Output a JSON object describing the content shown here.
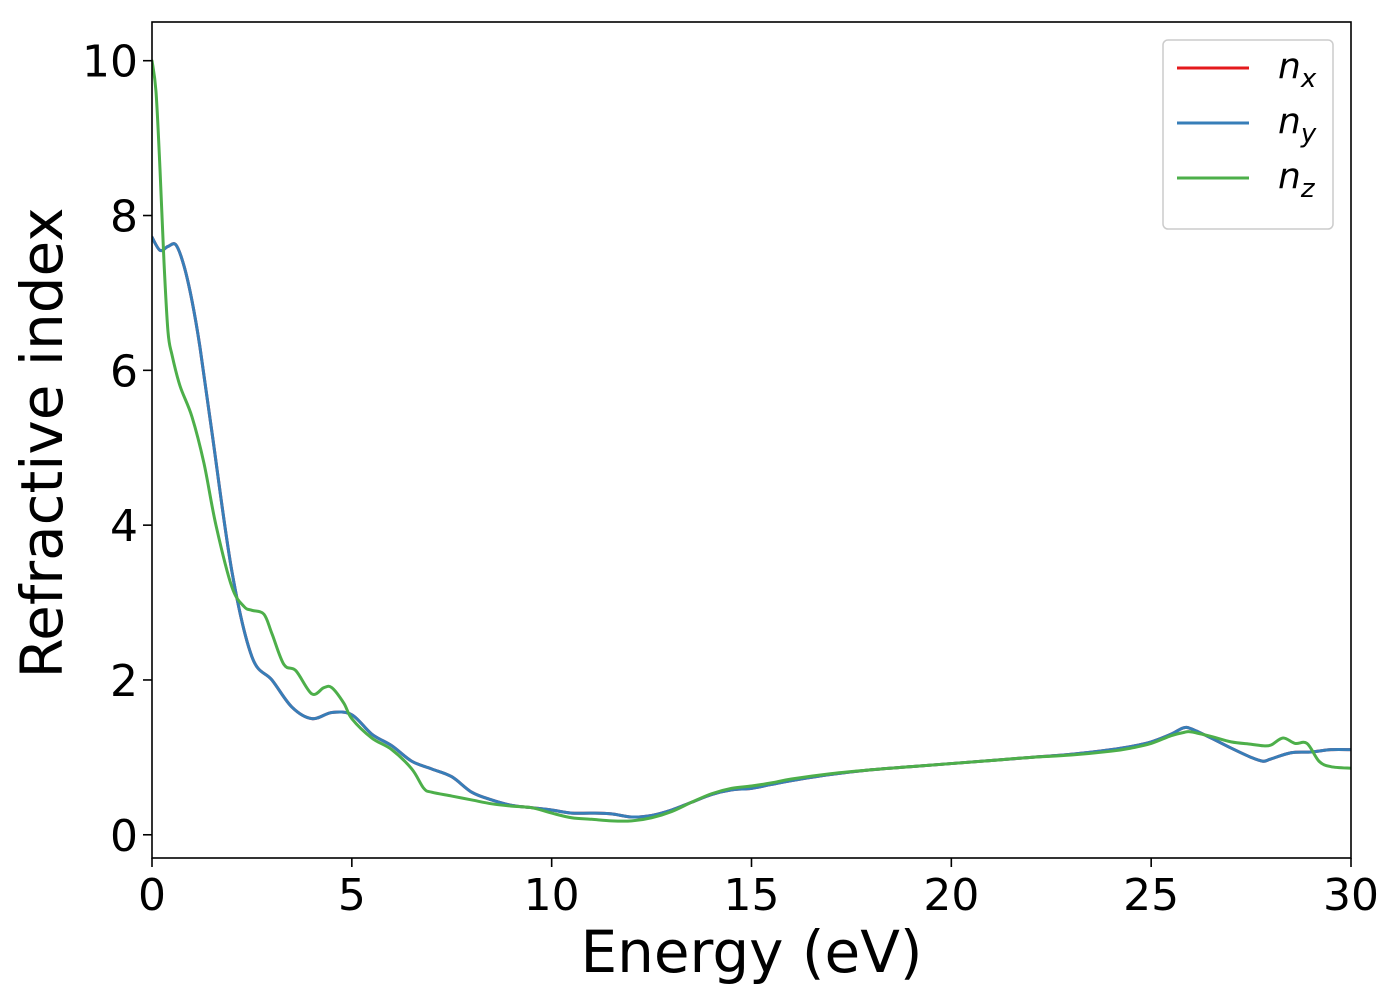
{
  "chart_data": {
    "type": "line",
    "xlabel": "Energy (eV)",
    "ylabel": "Refractive index",
    "xlim": [
      0,
      30
    ],
    "ylim": [
      -0.3,
      10.5
    ],
    "xticks": [
      0,
      5,
      10,
      15,
      20,
      25,
      30
    ],
    "yticks": [
      0,
      2,
      4,
      6,
      8,
      10
    ],
    "xtick_labels": [
      "0",
      "5",
      "10",
      "15",
      "20",
      "25",
      "30"
    ],
    "ytick_labels": [
      "0",
      "2",
      "4",
      "6",
      "8",
      "10"
    ],
    "grid": false,
    "legend_position": "top-right",
    "series": [
      {
        "name": "n_x",
        "legend_base": "n",
        "legend_sub": "x",
        "color": "#e41a1c",
        "x": [
          0,
          0.2,
          0.4,
          0.6,
          0.8,
          1.0,
          1.2,
          1.5,
          2.0,
          2.5,
          3.0,
          3.5,
          4.0,
          4.5,
          5.0,
          5.5,
          6.0,
          6.5,
          7.0,
          7.5,
          8.0,
          8.5,
          9.0,
          9.5,
          10.0,
          10.5,
          11.0,
          11.5,
          12.0,
          12.5,
          13.0,
          13.5,
          14.0,
          14.5,
          15.0,
          15.5,
          16.0,
          17.0,
          18.0,
          19.0,
          20.0,
          21.0,
          22.0,
          23.0,
          24.0,
          24.5,
          25.0,
          25.5,
          25.8,
          26.0,
          26.5,
          27.0,
          27.5,
          27.8,
          28.0,
          28.5,
          29.0,
          29.5,
          30.0
        ],
        "y": [
          7.72,
          7.55,
          7.6,
          7.62,
          7.35,
          6.9,
          6.3,
          5.2,
          3.4,
          2.3,
          2.0,
          1.65,
          1.5,
          1.58,
          1.55,
          1.3,
          1.15,
          0.95,
          0.85,
          0.75,
          0.55,
          0.45,
          0.38,
          0.35,
          0.32,
          0.28,
          0.28,
          0.27,
          0.23,
          0.25,
          0.32,
          0.42,
          0.52,
          0.58,
          0.6,
          0.65,
          0.7,
          0.78,
          0.84,
          0.88,
          0.92,
          0.96,
          1.0,
          1.04,
          1.1,
          1.14,
          1.2,
          1.3,
          1.38,
          1.37,
          1.25,
          1.12,
          1.0,
          0.95,
          0.98,
          1.06,
          1.07,
          1.1,
          1.1
        ]
      },
      {
        "name": "n_y",
        "legend_base": "n",
        "legend_sub": "y",
        "color": "#377eb8",
        "x": [
          0,
          0.2,
          0.4,
          0.6,
          0.8,
          1.0,
          1.2,
          1.5,
          2.0,
          2.5,
          3.0,
          3.5,
          4.0,
          4.5,
          5.0,
          5.5,
          6.0,
          6.5,
          7.0,
          7.5,
          8.0,
          8.5,
          9.0,
          9.5,
          10.0,
          10.5,
          11.0,
          11.5,
          12.0,
          12.5,
          13.0,
          13.5,
          14.0,
          14.5,
          15.0,
          15.5,
          16.0,
          17.0,
          18.0,
          19.0,
          20.0,
          21.0,
          22.0,
          23.0,
          24.0,
          24.5,
          25.0,
          25.5,
          25.8,
          26.0,
          26.5,
          27.0,
          27.5,
          27.8,
          28.0,
          28.5,
          29.0,
          29.5,
          30.0
        ],
        "y": [
          7.72,
          7.55,
          7.6,
          7.62,
          7.35,
          6.9,
          6.3,
          5.2,
          3.4,
          2.3,
          2.0,
          1.65,
          1.5,
          1.58,
          1.55,
          1.3,
          1.15,
          0.95,
          0.85,
          0.75,
          0.55,
          0.45,
          0.38,
          0.35,
          0.32,
          0.28,
          0.28,
          0.27,
          0.23,
          0.25,
          0.32,
          0.42,
          0.52,
          0.58,
          0.6,
          0.65,
          0.7,
          0.78,
          0.84,
          0.88,
          0.92,
          0.96,
          1.0,
          1.04,
          1.1,
          1.14,
          1.2,
          1.3,
          1.38,
          1.37,
          1.25,
          1.12,
          1.0,
          0.95,
          0.98,
          1.06,
          1.07,
          1.1,
          1.1
        ]
      },
      {
        "name": "n_z",
        "legend_base": "n",
        "legend_sub": "z",
        "color": "#4daf4a",
        "x": [
          0,
          0.1,
          0.2,
          0.3,
          0.4,
          0.5,
          0.7,
          1.0,
          1.3,
          1.6,
          2.0,
          2.3,
          2.5,
          2.8,
          3.0,
          3.3,
          3.6,
          4.0,
          4.3,
          4.5,
          4.8,
          5.0,
          5.5,
          6.0,
          6.5,
          6.8,
          7.0,
          7.5,
          8.0,
          8.5,
          9.0,
          9.5,
          10.0,
          10.5,
          11.0,
          11.5,
          12.0,
          12.5,
          13.0,
          13.5,
          14.0,
          14.5,
          15.0,
          15.5,
          16.0,
          17.0,
          18.0,
          19.0,
          20.0,
          21.0,
          22.0,
          23.0,
          24.0,
          24.5,
          25.0,
          25.5,
          25.8,
          26.0,
          26.5,
          27.0,
          27.5,
          27.8,
          28.0,
          28.3,
          28.6,
          28.9,
          29.2,
          29.5,
          30.0
        ],
        "y": [
          10.0,
          9.6,
          8.6,
          7.4,
          6.5,
          6.2,
          5.8,
          5.4,
          4.8,
          4.0,
          3.2,
          2.95,
          2.9,
          2.85,
          2.6,
          2.2,
          2.12,
          1.82,
          1.9,
          1.9,
          1.7,
          1.5,
          1.25,
          1.1,
          0.85,
          0.6,
          0.55,
          0.5,
          0.45,
          0.4,
          0.37,
          0.35,
          0.28,
          0.22,
          0.2,
          0.18,
          0.18,
          0.22,
          0.3,
          0.42,
          0.53,
          0.6,
          0.63,
          0.67,
          0.72,
          0.79,
          0.84,
          0.88,
          0.92,
          0.96,
          1.0,
          1.03,
          1.08,
          1.12,
          1.18,
          1.28,
          1.32,
          1.33,
          1.27,
          1.2,
          1.17,
          1.15,
          1.16,
          1.25,
          1.18,
          1.18,
          0.95,
          0.88,
          0.86
        ]
      }
    ]
  }
}
